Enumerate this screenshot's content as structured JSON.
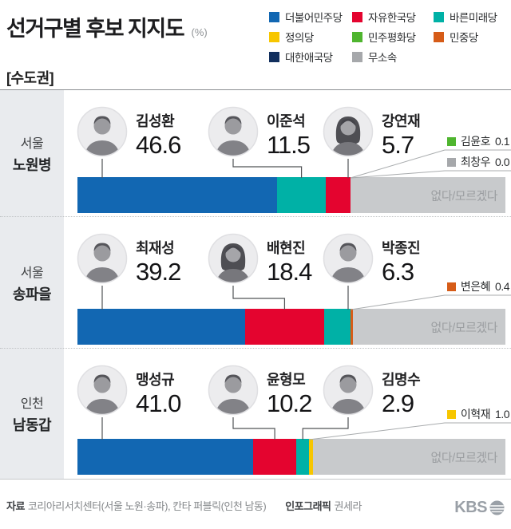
{
  "header": {
    "title": "선거구별 후보 지지도",
    "unit": "(%)",
    "region_group": "[수도권]"
  },
  "legend": [
    {
      "label": "더불어민주당",
      "color": "#1267b2"
    },
    {
      "label": "자유한국당",
      "color": "#e4042f"
    },
    {
      "label": "바른미래당",
      "color": "#00b1a6"
    },
    {
      "label": "정의당",
      "color": "#f7c600"
    },
    {
      "label": "민주평화당",
      "color": "#4fb52f"
    },
    {
      "label": "민중당",
      "color": "#d65c18"
    },
    {
      "label": "대한애국당",
      "color": "#122f5d"
    },
    {
      "label": "무소속",
      "color": "#a6a8ab"
    }
  ],
  "none_label": "없다/모르겠다",
  "sections": [
    {
      "region_city": "서울",
      "region_district": "노원병",
      "candidates": [
        {
          "name": "김성환",
          "value": "46.6",
          "party": "더불어민주당",
          "portrait": "male"
        },
        {
          "name": "이준석",
          "value": "11.5",
          "party": "바른미래당",
          "portrait": "male"
        },
        {
          "name": "강연재",
          "value": "5.7",
          "party": "자유한국당",
          "portrait": "female"
        }
      ],
      "minor": [
        {
          "name": "김윤호",
          "value": "0.1",
          "party": "민주평화당"
        },
        {
          "name": "최창우",
          "value": "0.0",
          "party": "무소속"
        }
      ]
    },
    {
      "region_city": "서울",
      "region_district": "송파을",
      "candidates": [
        {
          "name": "최재성",
          "value": "39.2",
          "party": "더불어민주당",
          "portrait": "male"
        },
        {
          "name": "배현진",
          "value": "18.4",
          "party": "자유한국당",
          "portrait": "female"
        },
        {
          "name": "박종진",
          "value": "6.3",
          "party": "바른미래당",
          "portrait": "male"
        }
      ],
      "minor": [
        {
          "name": "변은혜",
          "value": "0.4",
          "party": "민중당"
        }
      ]
    },
    {
      "region_city": "인천",
      "region_district": "남동갑",
      "candidates": [
        {
          "name": "맹성규",
          "value": "41.0",
          "party": "더불어민주당",
          "portrait": "male"
        },
        {
          "name": "윤형모",
          "value": "10.2",
          "party": "자유한국당",
          "portrait": "male"
        },
        {
          "name": "김명수",
          "value": "2.9",
          "party": "바른미래당",
          "portrait": "male"
        }
      ],
      "minor": [
        {
          "name": "이혁재",
          "value": "1.0",
          "party": "정의당"
        }
      ]
    }
  ],
  "chart_data": [
    {
      "type": "bar",
      "stacked": true,
      "orientation": "horizontal",
      "title": "서울 노원병",
      "unit": "%",
      "xlim": [
        0,
        100
      ],
      "segments": [
        {
          "label": "김성환",
          "party": "더불어민주당",
          "value": 46.6,
          "color": "#1267b2"
        },
        {
          "label": "이준석",
          "party": "바른미래당",
          "value": 11.5,
          "color": "#00b1a6"
        },
        {
          "label": "강연재",
          "party": "자유한국당",
          "value": 5.7,
          "color": "#e4042f"
        },
        {
          "label": "김윤호",
          "party": "민주평화당",
          "value": 0.1,
          "color": "#4fb52f"
        },
        {
          "label": "최창우",
          "party": "무소속",
          "value": 0.0,
          "color": "#a6a8ab"
        },
        {
          "label": "없다/모르겠다",
          "party": "",
          "value": 36.1,
          "color": "#c8cacc"
        }
      ]
    },
    {
      "type": "bar",
      "stacked": true,
      "orientation": "horizontal",
      "title": "서울 송파을",
      "unit": "%",
      "xlim": [
        0,
        100
      ],
      "segments": [
        {
          "label": "최재성",
          "party": "더불어민주당",
          "value": 39.2,
          "color": "#1267b2"
        },
        {
          "label": "배현진",
          "party": "자유한국당",
          "value": 18.4,
          "color": "#e4042f"
        },
        {
          "label": "박종진",
          "party": "바른미래당",
          "value": 6.3,
          "color": "#00b1a6"
        },
        {
          "label": "변은혜",
          "party": "민중당",
          "value": 0.4,
          "color": "#d65c18"
        },
        {
          "label": "없다/모르겠다",
          "party": "",
          "value": 35.7,
          "color": "#c8cacc"
        }
      ]
    },
    {
      "type": "bar",
      "stacked": true,
      "orientation": "horizontal",
      "title": "인천 남동갑",
      "unit": "%",
      "xlim": [
        0,
        100
      ],
      "segments": [
        {
          "label": "맹성규",
          "party": "더불어민주당",
          "value": 41.0,
          "color": "#1267b2"
        },
        {
          "label": "윤형모",
          "party": "자유한국당",
          "value": 10.2,
          "color": "#e4042f"
        },
        {
          "label": "김명수",
          "party": "바른미래당",
          "value": 2.9,
          "color": "#00b1a6"
        },
        {
          "label": "이혁재",
          "party": "정의당",
          "value": 1.0,
          "color": "#f7c600"
        },
        {
          "label": "없다/모르겠다",
          "party": "",
          "value": 44.9,
          "color": "#c8cacc"
        }
      ]
    }
  ],
  "footer": {
    "source_label": "자료",
    "source_text": "코리아리서치센터(서울 노원·송파), 칸타 퍼블릭(인천 남동)",
    "credit_label": "인포그래픽",
    "credit_name": "권세라",
    "logo": "KBS"
  }
}
